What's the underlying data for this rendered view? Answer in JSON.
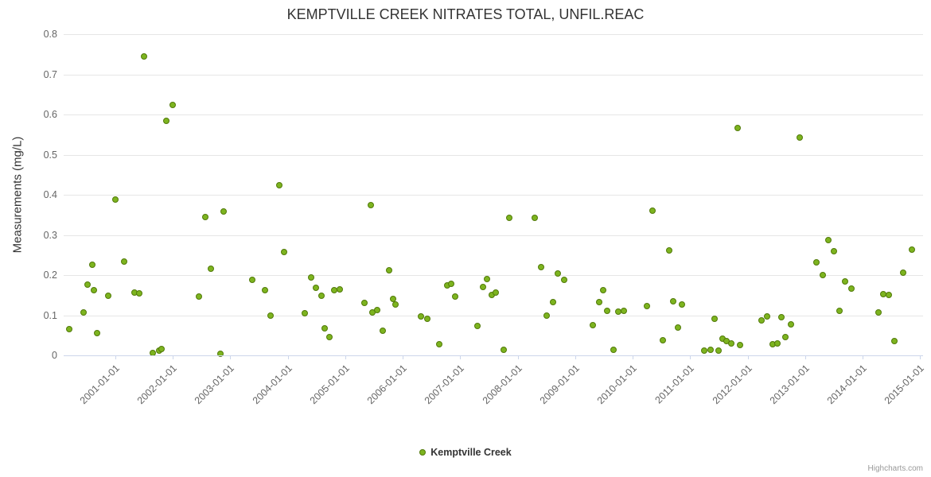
{
  "credits": "Highcharts.com",
  "legend": {
    "label": "Kemptville Creek"
  },
  "chart_data": {
    "type": "scatter",
    "title": "KEMPTVILLE CREEK NITRATES TOTAL, UNFIL.REAC",
    "xlabel": "",
    "ylabel": "Measurements (mg/L)",
    "xlim": [
      2000.1,
      2015.05
    ],
    "ylim": [
      0,
      0.8
    ],
    "grid": true,
    "legend_position": "bottom-center",
    "colors": {
      "marker": "#7db41f",
      "marker_border": "#527a0a",
      "grid": "#e6e6e6",
      "axis": "#ccd6eb",
      "tick_text": "#666666",
      "title_text": "#333333"
    },
    "yticks": [
      {
        "value": 0,
        "label": "0"
      },
      {
        "value": 0.1,
        "label": "0.1"
      },
      {
        "value": 0.2,
        "label": "0.2"
      },
      {
        "value": 0.3,
        "label": "0.3"
      },
      {
        "value": 0.4,
        "label": "0.4"
      },
      {
        "value": 0.5,
        "label": "0.5"
      },
      {
        "value": 0.6,
        "label": "0.6"
      },
      {
        "value": 0.7,
        "label": "0.7"
      },
      {
        "value": 0.8,
        "label": "0.8"
      }
    ],
    "xticks": [
      {
        "value": 2001,
        "label": "2001-01-01"
      },
      {
        "value": 2002,
        "label": "2002-01-01"
      },
      {
        "value": 2003,
        "label": "2003-01-01"
      },
      {
        "value": 2004,
        "label": "2004-01-01"
      },
      {
        "value": 2005,
        "label": "2005-01-01"
      },
      {
        "value": 2006,
        "label": "2006-01-01"
      },
      {
        "value": 2007,
        "label": "2007-01-01"
      },
      {
        "value": 2008,
        "label": "2008-01-01"
      },
      {
        "value": 2009,
        "label": "2009-01-01"
      },
      {
        "value": 2010,
        "label": "2010-01-01"
      },
      {
        "value": 2011,
        "label": "2011-01-01"
      },
      {
        "value": 2012,
        "label": "2012-01-01"
      },
      {
        "value": 2013,
        "label": "2013-01-01"
      },
      {
        "value": 2014,
        "label": "2014-01-01"
      },
      {
        "value": 2015,
        "label": "2015-01-01"
      }
    ],
    "series": [
      {
        "name": "Kemptville Creek",
        "points": [
          [
            2000.2,
            0.065
          ],
          [
            2000.45,
            0.107
          ],
          [
            2000.52,
            0.177
          ],
          [
            2000.6,
            0.225
          ],
          [
            2000.63,
            0.162
          ],
          [
            2000.68,
            0.055
          ],
          [
            2000.88,
            0.148
          ],
          [
            2001.0,
            0.389
          ],
          [
            2001.15,
            0.233
          ],
          [
            2001.33,
            0.157
          ],
          [
            2001.42,
            0.155
          ],
          [
            2001.5,
            0.745
          ],
          [
            2001.65,
            0.006
          ],
          [
            2001.76,
            0.012
          ],
          [
            2001.8,
            0.015
          ],
          [
            2001.89,
            0.585
          ],
          [
            2002.0,
            0.623
          ],
          [
            2002.45,
            0.147
          ],
          [
            2002.56,
            0.344
          ],
          [
            2002.66,
            0.216
          ],
          [
            2002.83,
            0.004
          ],
          [
            2002.88,
            0.359
          ],
          [
            2003.38,
            0.189
          ],
          [
            2003.6,
            0.162
          ],
          [
            2003.7,
            0.1
          ],
          [
            2003.85,
            0.423
          ],
          [
            2003.93,
            0.257
          ],
          [
            2004.3,
            0.104
          ],
          [
            2004.4,
            0.195
          ],
          [
            2004.49,
            0.168
          ],
          [
            2004.58,
            0.148
          ],
          [
            2004.64,
            0.068
          ],
          [
            2004.73,
            0.046
          ],
          [
            2004.8,
            0.162
          ],
          [
            2004.9,
            0.165
          ],
          [
            2005.33,
            0.13
          ],
          [
            2005.45,
            0.375
          ],
          [
            2005.47,
            0.107
          ],
          [
            2005.56,
            0.112
          ],
          [
            2005.65,
            0.062
          ],
          [
            2005.76,
            0.211
          ],
          [
            2005.83,
            0.14
          ],
          [
            2005.87,
            0.127
          ],
          [
            2006.32,
            0.097
          ],
          [
            2006.43,
            0.092
          ],
          [
            2006.64,
            0.027
          ],
          [
            2006.77,
            0.174
          ],
          [
            2006.84,
            0.178
          ],
          [
            2006.91,
            0.146
          ],
          [
            2007.3,
            0.073
          ],
          [
            2007.39,
            0.17
          ],
          [
            2007.47,
            0.19
          ],
          [
            2007.55,
            0.15
          ],
          [
            2007.62,
            0.156
          ],
          [
            2007.76,
            0.013
          ],
          [
            2007.85,
            0.342
          ],
          [
            2008.29,
            0.342
          ],
          [
            2008.41,
            0.22
          ],
          [
            2008.5,
            0.1
          ],
          [
            2008.61,
            0.132
          ],
          [
            2008.7,
            0.204
          ],
          [
            2008.81,
            0.188
          ],
          [
            2009.31,
            0.075
          ],
          [
            2009.41,
            0.132
          ],
          [
            2009.48,
            0.162
          ],
          [
            2009.55,
            0.11
          ],
          [
            2009.66,
            0.013
          ],
          [
            2009.75,
            0.108
          ],
          [
            2009.85,
            0.11
          ],
          [
            2010.24,
            0.122
          ],
          [
            2010.34,
            0.361
          ],
          [
            2010.53,
            0.037
          ],
          [
            2010.63,
            0.262
          ],
          [
            2010.7,
            0.134
          ],
          [
            2010.78,
            0.07
          ],
          [
            2010.86,
            0.127
          ],
          [
            2011.25,
            0.011
          ],
          [
            2011.35,
            0.013
          ],
          [
            2011.42,
            0.092
          ],
          [
            2011.49,
            0.011
          ],
          [
            2011.56,
            0.041
          ],
          [
            2011.63,
            0.035
          ],
          [
            2011.72,
            0.03
          ],
          [
            2011.82,
            0.566
          ],
          [
            2011.87,
            0.026
          ],
          [
            2012.24,
            0.088
          ],
          [
            2012.34,
            0.098
          ],
          [
            2012.44,
            0.028
          ],
          [
            2012.51,
            0.03
          ],
          [
            2012.58,
            0.096
          ],
          [
            2012.65,
            0.045
          ],
          [
            2012.75,
            0.077
          ],
          [
            2012.9,
            0.542
          ],
          [
            2013.2,
            0.232
          ],
          [
            2013.3,
            0.2
          ],
          [
            2013.4,
            0.288
          ],
          [
            2013.5,
            0.26
          ],
          [
            2013.6,
            0.11
          ],
          [
            2013.7,
            0.184
          ],
          [
            2013.8,
            0.166
          ],
          [
            2014.27,
            0.107
          ],
          [
            2014.36,
            0.152
          ],
          [
            2014.45,
            0.15
          ],
          [
            2014.55,
            0.035
          ],
          [
            2014.7,
            0.205
          ],
          [
            2014.85,
            0.264
          ]
        ]
      }
    ]
  }
}
